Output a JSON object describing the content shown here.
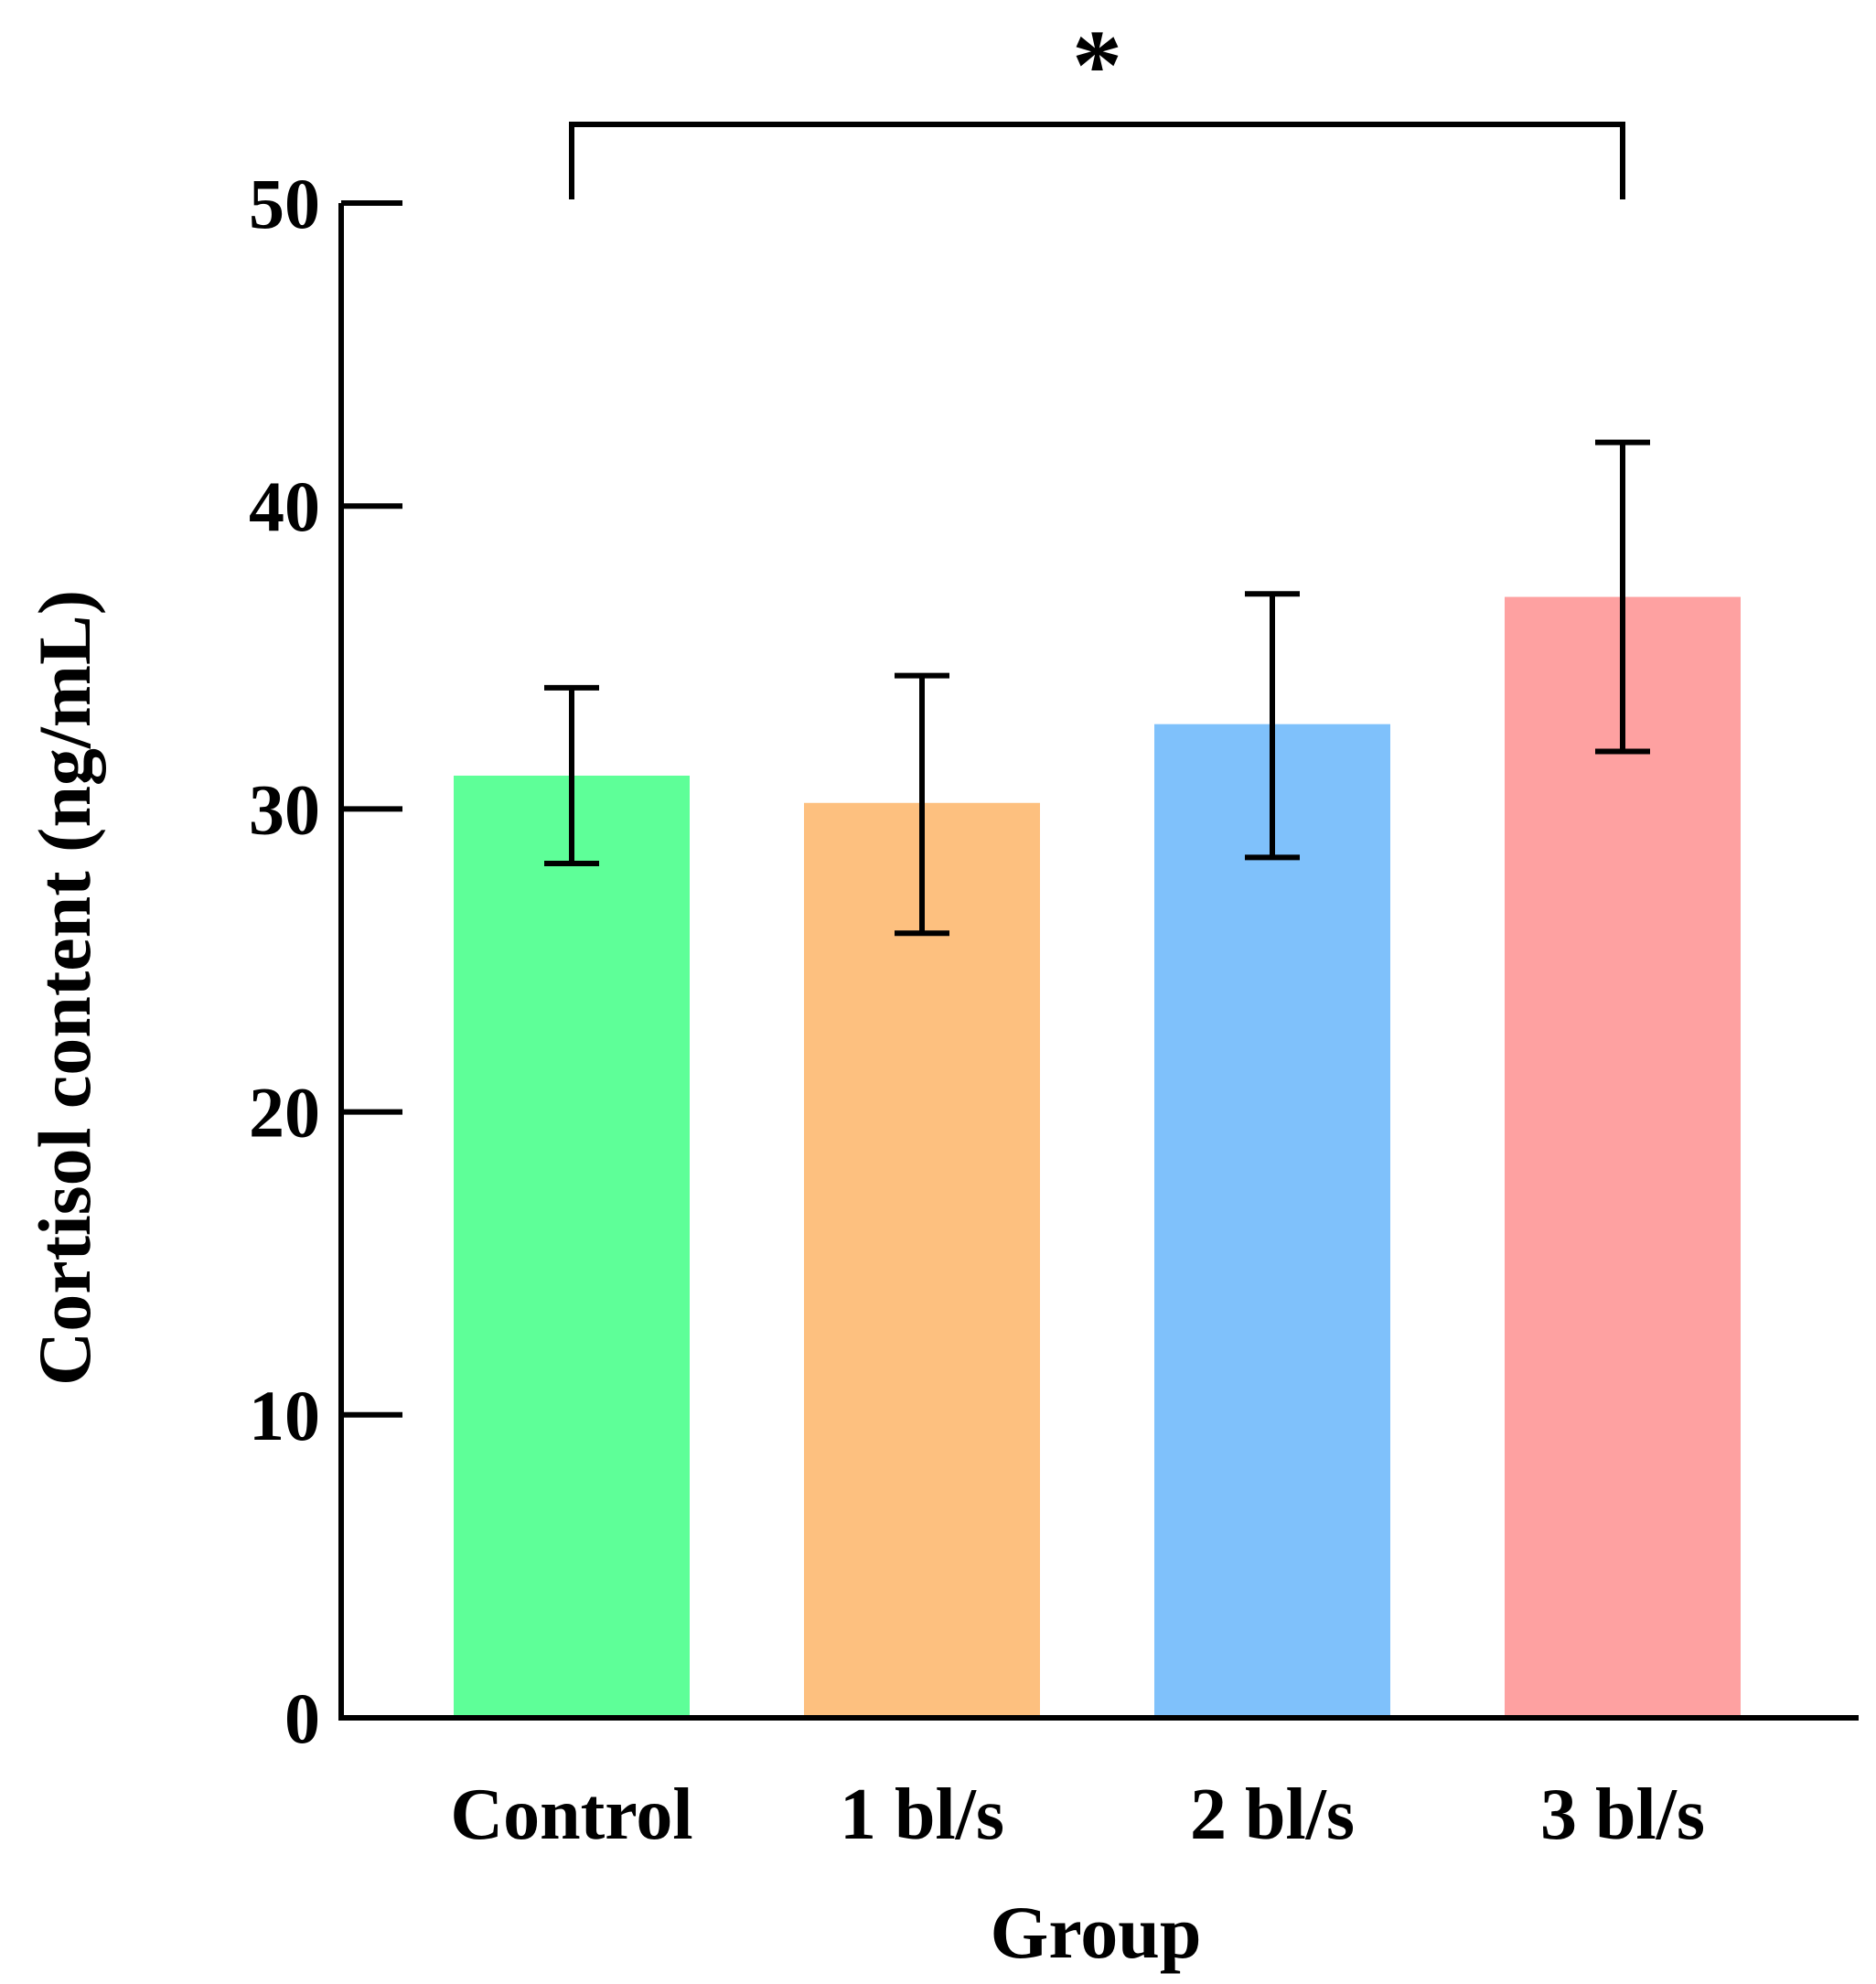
{
  "chart_data": {
    "type": "bar",
    "title": "",
    "xlabel": "Group",
    "ylabel": "Cortisol content (ng/mL)",
    "categories": [
      "Control",
      "1 bl/s",
      "2 bl/s",
      "3 bl/s"
    ],
    "values": [
      31.1,
      30.2,
      32.8,
      37.0
    ],
    "error_low": [
      28.2,
      25.9,
      28.4,
      31.9
    ],
    "error_high": [
      34.0,
      34.4,
      37.1,
      42.1
    ],
    "colors": [
      "#5eff98",
      "#fdc07f",
      "#7fc1fb",
      "#fea1a1"
    ],
    "ylim": [
      0,
      50
    ],
    "yticks": [
      0,
      10,
      20,
      30,
      40,
      50
    ],
    "ytick_labels": [
      "0",
      "10",
      "20",
      "30",
      "40",
      "50"
    ],
    "grid": false,
    "significance": [
      {
        "from": 0,
        "to": 3,
        "label": "*"
      }
    ]
  }
}
